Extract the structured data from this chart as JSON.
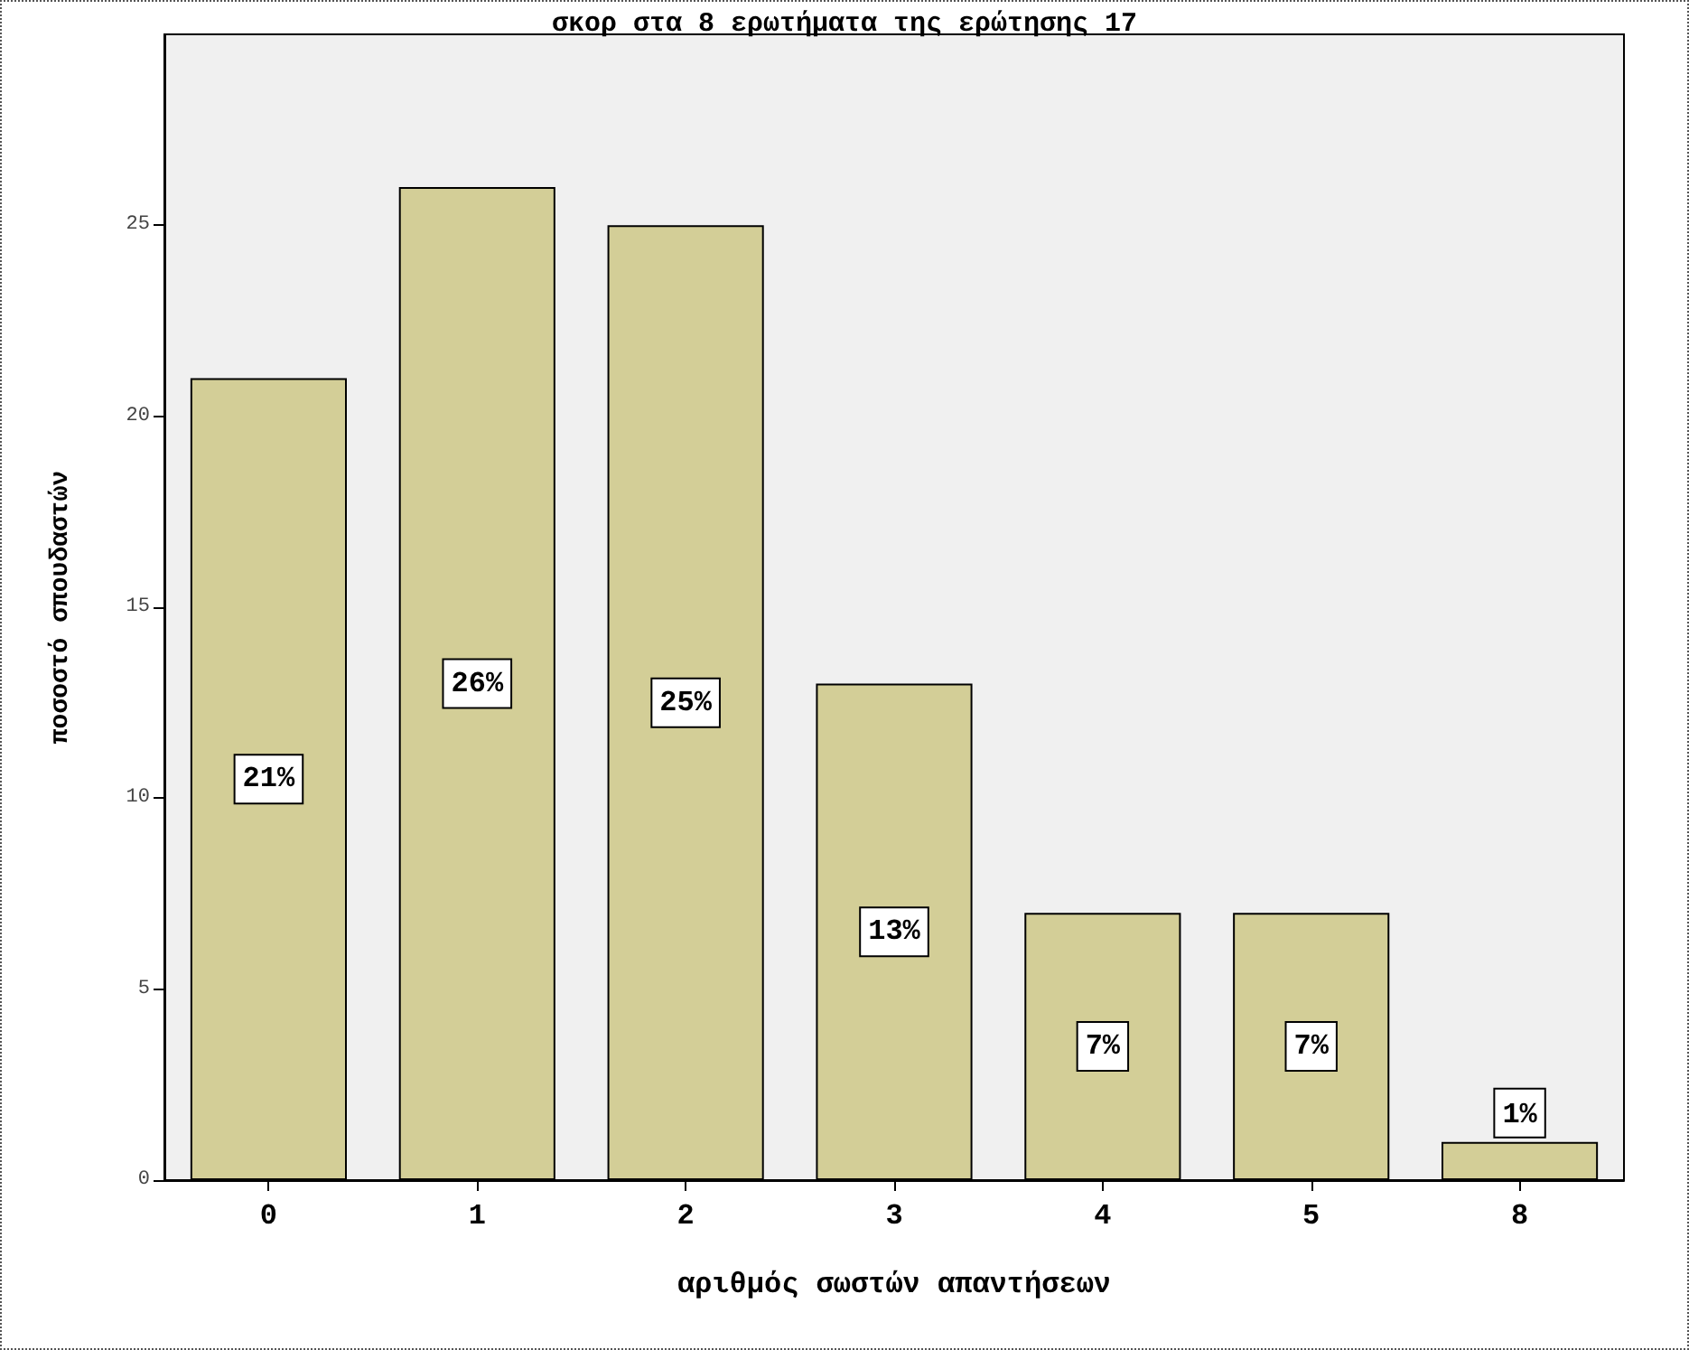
{
  "chart_data": {
    "type": "bar",
    "title": "σκορ στα 8 ερωτήματα της ερώτησης 17",
    "xlabel": "αριθμός σωστών απαντήσεων",
    "ylabel": "ποσοστό σπουδαστών",
    "categories": [
      "0",
      "1",
      "2",
      "3",
      "4",
      "5",
      "8"
    ],
    "values": [
      21,
      26,
      25,
      13,
      7,
      7,
      1
    ],
    "value_labels": [
      "21%",
      "26%",
      "25%",
      "13%",
      "7%",
      "7%",
      "1%"
    ],
    "color": "#d3ce97",
    "ylim": [
      0,
      30
    ],
    "yticks": [
      0,
      5,
      10,
      15,
      20,
      25
    ]
  }
}
